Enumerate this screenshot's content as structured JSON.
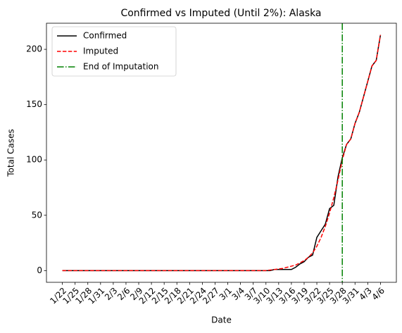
{
  "chart_data": {
    "type": "line",
    "title": "Confirmed vs Imputed (Until 2%): Alaska",
    "x_label": "Date",
    "y_label": "Total Cases",
    "categories": [
      "1/22",
      null,
      null,
      "1/25",
      null,
      null,
      "1/28",
      null,
      null,
      "1/31",
      null,
      null,
      "2/3",
      null,
      null,
      "2/6",
      null,
      null,
      "2/9",
      null,
      null,
      "2/12",
      null,
      null,
      "2/15",
      null,
      null,
      "2/18",
      null,
      null,
      "2/21",
      null,
      null,
      "2/24",
      null,
      null,
      "2/27",
      null,
      null,
      "3/1",
      null,
      null,
      "3/4",
      null,
      null,
      "3/7",
      null,
      null,
      "3/10",
      null,
      null,
      "3/13",
      null,
      null,
      "3/16",
      null,
      null,
      "3/19",
      null,
      null,
      "3/22",
      null,
      null,
      "3/25",
      null,
      null,
      "3/28",
      null,
      null,
      "3/31",
      null,
      null,
      "4/3",
      null,
      null,
      "4/6"
    ],
    "series": [
      {
        "name": "Confirmed",
        "color": "#000000",
        "dash": "solid",
        "values": [
          0,
          0,
          0,
          0,
          0,
          0,
          0,
          0,
          0,
          0,
          0,
          0,
          0,
          0,
          0,
          0,
          0,
          0,
          0,
          0,
          0,
          0,
          0,
          0,
          0,
          0,
          0,
          0,
          0,
          0,
          0,
          0,
          0,
          0,
          0,
          0,
          0,
          0,
          0,
          0,
          0,
          0,
          0,
          0,
          0,
          0,
          0,
          0,
          0,
          0,
          1,
          1,
          1,
          1,
          1,
          3,
          6,
          8,
          12,
          14,
          30,
          36,
          42,
          56,
          59,
          85,
          102,
          114,
          119,
          133,
          143,
          157,
          171,
          185,
          190,
          213
        ]
      },
      {
        "name": "Imputed",
        "color": "#ff0000",
        "dash": "dashed",
        "values": [
          0,
          0,
          0,
          0,
          0,
          0,
          0,
          0,
          0,
          0,
          0,
          0,
          0,
          0,
          0,
          0,
          0,
          0,
          0,
          0,
          0,
          0,
          0,
          0,
          0,
          0,
          0,
          0,
          0,
          0,
          0,
          0,
          0,
          0,
          0,
          0,
          0,
          0,
          0,
          0,
          0,
          0,
          0,
          0,
          0,
          0,
          0,
          0,
          0,
          0.5,
          1,
          1.5,
          2,
          3,
          4,
          5,
          7,
          9,
          12,
          16,
          22,
          30,
          40,
          52,
          66,
          82,
          100,
          114,
          119,
          133,
          143,
          157,
          171,
          185,
          190,
          213
        ]
      }
    ],
    "vline": {
      "name": "End of Imputation",
      "color": "#008000",
      "dash": "dashdot",
      "x": "3/28"
    },
    "xlim": [
      -3.75,
      78.75
    ],
    "ylim": [
      -10.6,
      223.6
    ],
    "yticks": [
      0,
      50,
      100,
      150,
      200
    ],
    "legend": "upper left"
  }
}
